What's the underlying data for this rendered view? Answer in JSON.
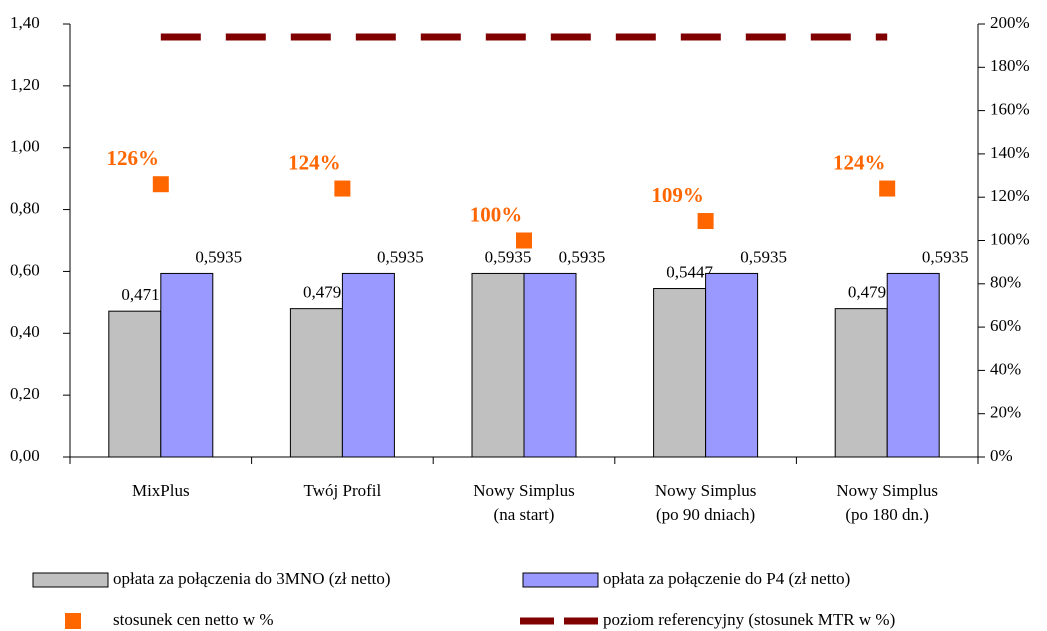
{
  "chart_data": {
    "type": "bar",
    "categories": [
      "MixPlus",
      "Twój Profil",
      "Nowy Simplus\n(na start)",
      "Nowy Simplus\n(po 90 dniach)",
      "Nowy Simplus\n(po 180 dn.)"
    ],
    "series": [
      {
        "name": "opłata za połączenia do 3MNO (zł netto)",
        "type": "bar",
        "color": "#c0c0c0",
        "values": [
          0.4715,
          0.4797,
          0.5935,
          0.5447,
          0.4797
        ],
        "value_labels": [
          "0,4715",
          "0,4797",
          "0,5935",
          "0,5447",
          "0,4797"
        ]
      },
      {
        "name": "opłata za połączenie do P4 (zł netto)",
        "type": "bar",
        "color": "#9999ff",
        "values": [
          0.5935,
          0.5935,
          0.5935,
          0.5935,
          0.5935
        ],
        "value_labels": [
          "0,5935",
          "0,5935",
          "0,5935",
          "0,5935",
          "0,5935"
        ]
      },
      {
        "name": "stosunek cen netto w %",
        "type": "scatter",
        "axis": "y2",
        "color": "#ff6600",
        "values": [
          126,
          124,
          100,
          109,
          124
        ],
        "value_labels": [
          "126%",
          "124%",
          "100%",
          "109%",
          "124%"
        ]
      },
      {
        "name": "poziom referencyjny (stosunek MTR w %)",
        "type": "line",
        "axis": "y2",
        "color": "#800000",
        "values": [
          194,
          194,
          194,
          194,
          194
        ]
      }
    ],
    "ylim": [
      0,
      1.4
    ],
    "yticks": [
      {
        "value": 0,
        "label": "0,00"
      },
      {
        "value": 0.2,
        "label": "0,20"
      },
      {
        "value": 0.4,
        "label": "0,40"
      },
      {
        "value": 0.6,
        "label": "0,60"
      },
      {
        "value": 0.8,
        "label": "0,80"
      },
      {
        "value": 1.0,
        "label": "1,00"
      },
      {
        "value": 1.2,
        "label": "1,20"
      },
      {
        "value": 1.4,
        "label": "1,40"
      }
    ],
    "y2lim": [
      0,
      200
    ],
    "y2ticks": [
      {
        "value": 0,
        "label": "0%"
      },
      {
        "value": 20,
        "label": "20%"
      },
      {
        "value": 40,
        "label": "40%"
      },
      {
        "value": 60,
        "label": "60%"
      },
      {
        "value": 80,
        "label": "80%"
      },
      {
        "value": 100,
        "label": "100%"
      },
      {
        "value": 120,
        "label": "120%"
      },
      {
        "value": 140,
        "label": "140%"
      },
      {
        "value": 160,
        "label": "160%"
      },
      {
        "value": 180,
        "label": "180%"
      },
      {
        "value": 200,
        "label": "200%"
      }
    ]
  }
}
